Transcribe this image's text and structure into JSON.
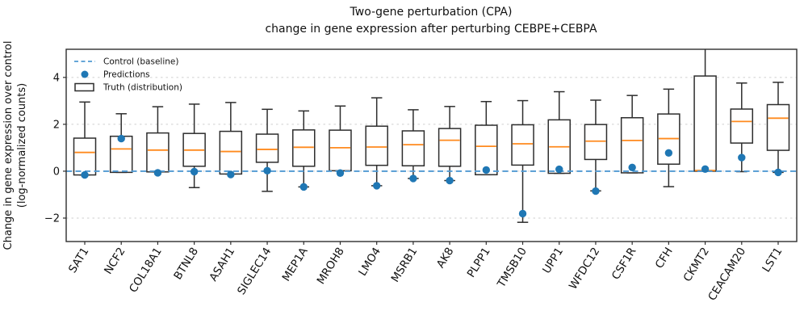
{
  "title": {
    "line1": "Two-gene perturbation (CPA)",
    "line2": "change in gene expression after perturbing CEBPE+CEBPA"
  },
  "y_axis": {
    "label_line1": "Change in gene expression over control",
    "label_line2": "(log-normalized counts)",
    "ticks": [
      -2,
      0,
      2,
      4
    ]
  },
  "legend": [
    {
      "type": "dashed-line",
      "label": "Control (baseline)"
    },
    {
      "type": "dot",
      "label": "Predictions"
    },
    {
      "type": "box",
      "label": "Truth (distribution)"
    }
  ],
  "colors": {
    "prediction_dot": "#1f77b4",
    "control_line": "#5199d3",
    "median_line": "#ff8a1e",
    "box_edge": "#2d2d2d",
    "spine": "#2d2d2d",
    "grid": "#cfcfcf",
    "background": "#ffffff"
  },
  "chart_data": {
    "type": "boxplot-with-points",
    "title": "Two-gene perturbation (CPA)",
    "subtitle": "change in gene expression after perturbing CEBPE+CEBPA",
    "ylabel": "Change in gene expression over control (log-normalized counts)",
    "ylim": [
      -3.0,
      5.2
    ],
    "yticks": [
      -2,
      0,
      2,
      4
    ],
    "grid": "horizontal-dashed",
    "legend_position": "upper-left",
    "control_baseline": 0,
    "categories": [
      "SAT1",
      "NCF2",
      "COL18A1",
      "BTNL8",
      "ASAH1",
      "SIGLEC14",
      "MEP1A",
      "MROH8",
      "LMO4",
      "MSRB1",
      "AK8",
      "PLPP1",
      "TMSB10",
      "UPP1",
      "WFDC12",
      "CSF1R",
      "CFH",
      "CKMT2",
      "CEACAM20",
      "LST1"
    ],
    "boxes": [
      {
        "gene": "SAT1",
        "whislo": -0.16,
        "q1": -0.16,
        "med": 0.8,
        "q3": 1.41,
        "whishi": 2.95
      },
      {
        "gene": "NCF2",
        "whislo": -0.05,
        "q1": -0.05,
        "med": 0.95,
        "q3": 1.49,
        "whishi": 2.45
      },
      {
        "gene": "COL18A1",
        "whislo": -0.03,
        "q1": -0.03,
        "med": 0.9,
        "q3": 1.63,
        "whishi": 2.75
      },
      {
        "gene": "BTNL8",
        "whislo": -0.7,
        "q1": 0.21,
        "med": 0.9,
        "q3": 1.61,
        "whishi": 2.86
      },
      {
        "gene": "ASAH1",
        "whislo": -0.12,
        "q1": -0.12,
        "med": 0.84,
        "q3": 1.7,
        "whishi": 2.93
      },
      {
        "gene": "SIGLEC14",
        "whislo": -0.86,
        "q1": 0.38,
        "med": 0.93,
        "q3": 1.58,
        "whishi": 2.64
      },
      {
        "gene": "MEP1A",
        "whislo": -0.67,
        "q1": 0.21,
        "med": 1.02,
        "q3": 1.76,
        "whishi": 2.57
      },
      {
        "gene": "MROH8",
        "whislo": 0.02,
        "q1": 0.02,
        "med": 1.0,
        "q3": 1.75,
        "whishi": 2.78
      },
      {
        "gene": "LMO4",
        "whislo": -0.62,
        "q1": 0.25,
        "med": 1.03,
        "q3": 1.92,
        "whishi": 3.13
      },
      {
        "gene": "MSRB1",
        "whislo": -0.31,
        "q1": 0.23,
        "med": 1.13,
        "q3": 1.72,
        "whishi": 2.62
      },
      {
        "gene": "AK8",
        "whislo": -0.4,
        "q1": 0.21,
        "med": 1.32,
        "q3": 1.82,
        "whishi": 2.76
      },
      {
        "gene": "PLPP1",
        "whislo": -0.15,
        "q1": -0.15,
        "med": 1.06,
        "q3": 1.96,
        "whishi": 2.97
      },
      {
        "gene": "TMSB10",
        "whislo": -2.18,
        "q1": 0.26,
        "med": 1.17,
        "q3": 1.98,
        "whishi": 3.01
      },
      {
        "gene": "UPP1",
        "whislo": -0.09,
        "q1": -0.09,
        "med": 1.04,
        "q3": 2.19,
        "whishi": 3.39
      },
      {
        "gene": "WFDC12",
        "whislo": -0.84,
        "q1": 0.5,
        "med": 1.28,
        "q3": 1.99,
        "whishi": 3.03
      },
      {
        "gene": "CSF1R",
        "whislo": -0.07,
        "q1": -0.07,
        "med": 1.31,
        "q3": 2.28,
        "whishi": 3.23
      },
      {
        "gene": "CFH",
        "whislo": -0.66,
        "q1": 0.3,
        "med": 1.39,
        "q3": 2.44,
        "whishi": 3.5
      },
      {
        "gene": "CKMT2",
        "whislo": 0.0,
        "q1": 0.0,
        "med": 0.03,
        "q3": 4.06,
        "whishi": 5.5
      },
      {
        "gene": "CEACAM20",
        "whislo": -0.02,
        "q1": 1.2,
        "med": 2.12,
        "q3": 2.65,
        "whishi": 3.76
      },
      {
        "gene": "LST1",
        "whislo": -0.05,
        "q1": 0.89,
        "med": 2.26,
        "q3": 2.84,
        "whishi": 3.79
      }
    ],
    "predictions": [
      -0.16,
      1.39,
      -0.07,
      -0.02,
      -0.14,
      0.02,
      -0.67,
      -0.08,
      -0.62,
      -0.31,
      -0.4,
      0.05,
      -1.81,
      0.08,
      -0.85,
      0.16,
      0.78,
      0.09,
      0.58,
      -0.05
    ],
    "notes": "CKMT2 upper whisker is clipped at the top of the axes"
  }
}
